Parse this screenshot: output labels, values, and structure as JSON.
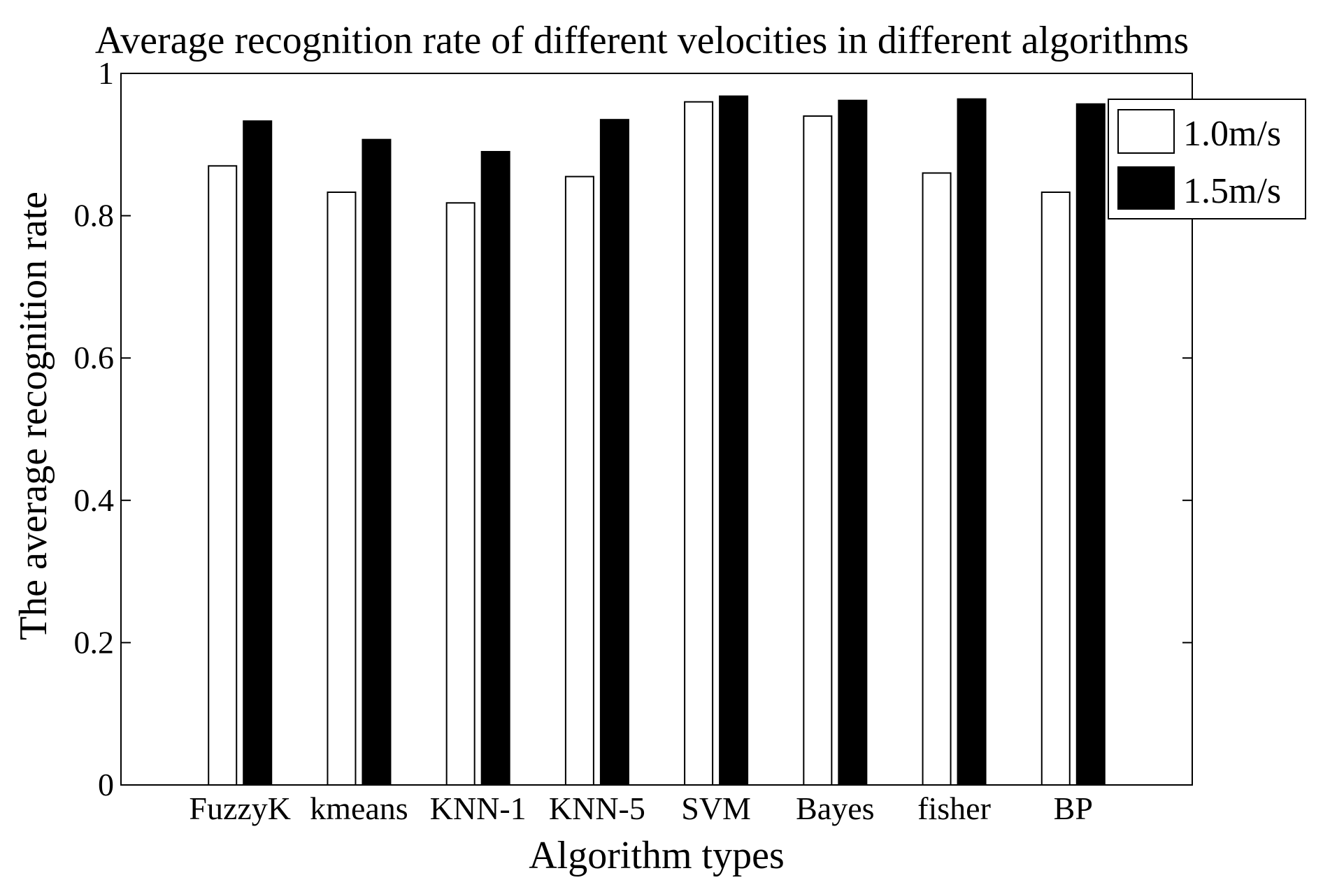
{
  "chart_data": {
    "type": "bar",
    "title": "Average recognition rate of different velocities in different algorithms",
    "xlabel": "Algorithm types",
    "ylabel": "The average recognition rate",
    "categories": [
      "FuzzyK",
      "kmeans",
      "KNN-1",
      "KNN-5",
      "SVM",
      "Bayes",
      "fisher",
      "BP"
    ],
    "series": [
      {
        "name": "1.0m/s",
        "color": "#ffffff",
        "values": [
          0.87,
          0.833,
          0.818,
          0.855,
          0.96,
          0.94,
          0.86,
          0.833
        ]
      },
      {
        "name": "1.5m/s",
        "color": "#000000",
        "values": [
          0.933,
          0.907,
          0.89,
          0.935,
          0.968,
          0.962,
          0.964,
          0.957
        ]
      }
    ],
    "ylim": [
      0,
      1
    ],
    "yticks": [
      0,
      0.2,
      0.4,
      0.6,
      0.8,
      1
    ],
    "ytick_labels": [
      "0",
      "0.2",
      "0.4",
      "0.6",
      "0.8",
      "1"
    ],
    "grid": false,
    "legend_position": "top-right"
  }
}
